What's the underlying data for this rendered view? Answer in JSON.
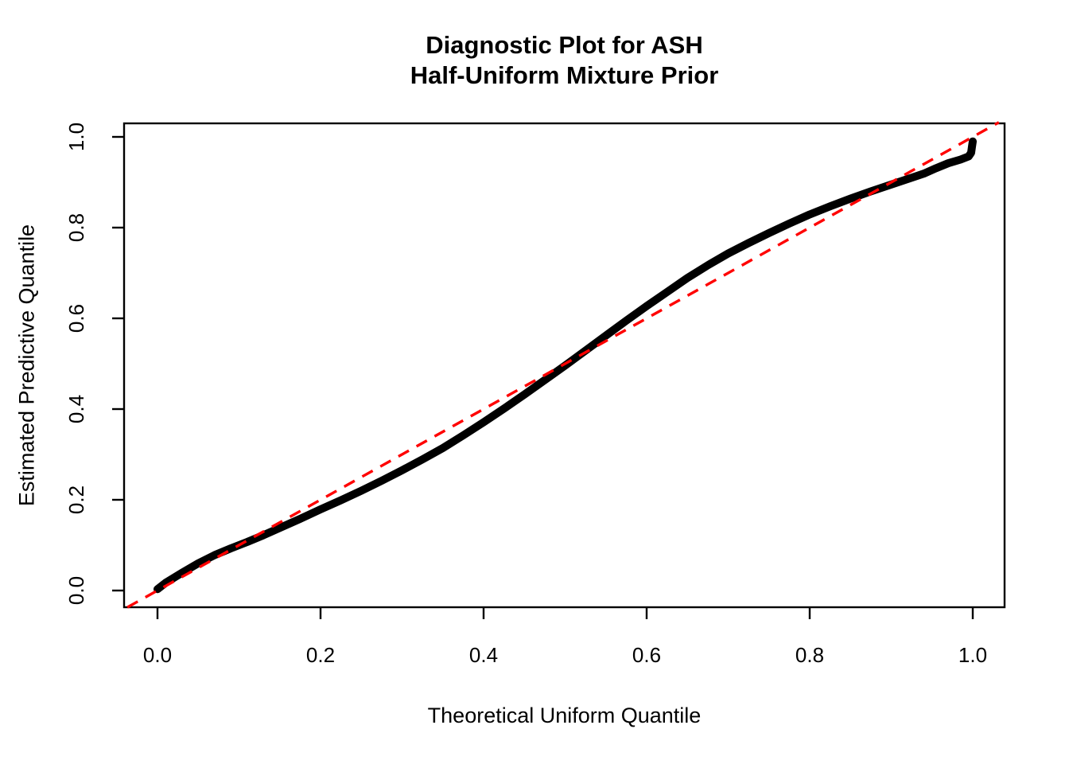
{
  "title": {
    "line1": "Diagnostic Plot for ASH",
    "line2": "Half-Uniform Mixture Prior"
  },
  "axes": {
    "x_label": "Theoretical Uniform Quantile",
    "y_label": "Estimated Predictive Quantile"
  },
  "colors": {
    "curve": "#000000",
    "reference_line": "#FF0000",
    "background": "#FFFFFF",
    "text": "#000000"
  },
  "chart_data": {
    "type": "line",
    "title": "Diagnostic Plot for ASH\nHalf-Uniform Mixture Prior",
    "xlabel": "Theoretical Uniform Quantile",
    "ylabel": "Estimated Predictive Quantile",
    "xlim": [
      -0.04,
      1.04
    ],
    "ylim": [
      -0.04,
      1.03
    ],
    "x_ticks": [
      0.0,
      0.2,
      0.4,
      0.6,
      0.8,
      1.0
    ],
    "y_ticks": [
      0.0,
      0.2,
      0.4,
      0.6,
      0.8,
      1.0
    ],
    "x_tick_labels": [
      "0.0",
      "0.2",
      "0.4",
      "0.6",
      "0.8",
      "1.0"
    ],
    "y_tick_labels": [
      "0.0",
      "0.2",
      "0.4",
      "0.6",
      "0.8",
      "1.0"
    ],
    "grid": false,
    "legend": null,
    "series": [
      {
        "name": "estimated-vs-theoretical-quantile-curve",
        "color": "#000000",
        "style": "thick-solid-points",
        "points": [
          [
            0.0,
            0.003
          ],
          [
            0.01,
            0.017
          ],
          [
            0.03,
            0.039
          ],
          [
            0.05,
            0.06
          ],
          [
            0.07,
            0.078
          ],
          [
            0.09,
            0.093
          ],
          [
            0.11,
            0.107
          ],
          [
            0.13,
            0.122
          ],
          [
            0.15,
            0.138
          ],
          [
            0.175,
            0.158
          ],
          [
            0.2,
            0.179
          ],
          [
            0.225,
            0.199
          ],
          [
            0.25,
            0.22
          ],
          [
            0.275,
            0.242
          ],
          [
            0.3,
            0.265
          ],
          [
            0.325,
            0.289
          ],
          [
            0.35,
            0.314
          ],
          [
            0.375,
            0.342
          ],
          [
            0.4,
            0.371
          ],
          [
            0.425,
            0.401
          ],
          [
            0.45,
            0.432
          ],
          [
            0.475,
            0.464
          ],
          [
            0.5,
            0.496
          ],
          [
            0.525,
            0.529
          ],
          [
            0.55,
            0.562
          ],
          [
            0.575,
            0.595
          ],
          [
            0.6,
            0.627
          ],
          [
            0.625,
            0.658
          ],
          [
            0.65,
            0.689
          ],
          [
            0.675,
            0.717
          ],
          [
            0.7,
            0.743
          ],
          [
            0.725,
            0.766
          ],
          [
            0.75,
            0.788
          ],
          [
            0.775,
            0.809
          ],
          [
            0.8,
            0.829
          ],
          [
            0.825,
            0.847
          ],
          [
            0.85,
            0.864
          ],
          [
            0.875,
            0.88
          ],
          [
            0.9,
            0.895
          ],
          [
            0.92,
            0.907
          ],
          [
            0.94,
            0.919
          ],
          [
            0.955,
            0.931
          ],
          [
            0.97,
            0.942
          ],
          [
            0.985,
            0.95
          ],
          [
            0.995,
            0.957
          ],
          [
            0.998,
            0.965
          ],
          [
            0.999,
            0.978
          ],
          [
            1.0,
            0.99
          ]
        ]
      },
      {
        "name": "reference-identity-line",
        "color": "#FF0000",
        "style": "dashed",
        "points": [
          [
            -0.037,
            -0.037
          ],
          [
            1.032,
            1.032
          ]
        ]
      }
    ]
  }
}
